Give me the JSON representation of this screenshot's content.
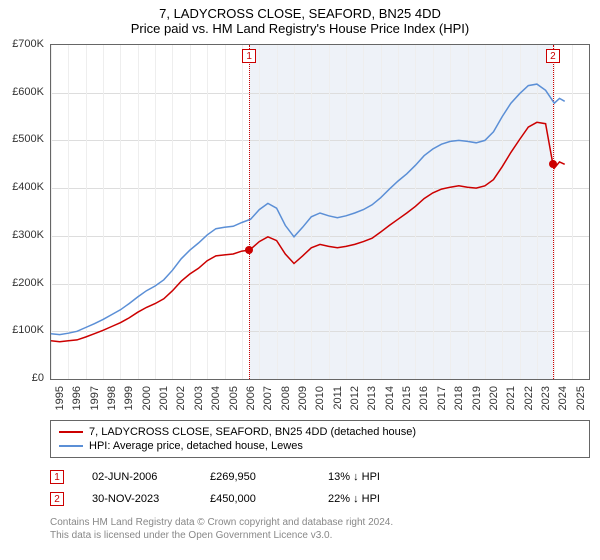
{
  "title": "7, LADYCROSS CLOSE, SEAFORD, BN25 4DD",
  "subtitle": "Price paid vs. HM Land Registry's House Price Index (HPI)",
  "chart": {
    "type": "line",
    "y_axis": {
      "min": 0,
      "max": 700000,
      "step": 100000,
      "format_prefix": "£",
      "format_suffix": "K",
      "format_divisor": 1000,
      "label_fontsize": 11,
      "grid_color": "#dddddd"
    },
    "x_axis": {
      "min": 1995,
      "max": 2026,
      "years": [
        1995,
        1996,
        1997,
        1998,
        1999,
        2000,
        2001,
        2002,
        2003,
        2004,
        2005,
        2006,
        2007,
        2008,
        2009,
        2010,
        2011,
        2012,
        2013,
        2014,
        2015,
        2016,
        2017,
        2018,
        2019,
        2020,
        2021,
        2022,
        2023,
        2024,
        2025
      ],
      "label_fontsize": 11,
      "grid_color": "#eeeeee"
    },
    "shade_region": {
      "x_start": 2006.42,
      "x_end": 2023.92,
      "color": "#eef2f8"
    },
    "markers": [
      {
        "id": "1",
        "x": 2006.42,
        "line_color": "#cc0000",
        "box_color": "#cc0000"
      },
      {
        "id": "2",
        "x": 2023.92,
        "line_color": "#cc0000",
        "box_color": "#cc0000"
      }
    ],
    "series": [
      {
        "name": "7, LADYCROSS CLOSE, SEAFORD, BN25 4DD (detached house)",
        "color": "#cc0000",
        "line_width": 1.5,
        "data": [
          [
            1995.0,
            80000
          ],
          [
            1995.5,
            78000
          ],
          [
            1996.0,
            80000
          ],
          [
            1996.5,
            82000
          ],
          [
            1997.0,
            88000
          ],
          [
            1997.5,
            95000
          ],
          [
            1998.0,
            102000
          ],
          [
            1998.5,
            110000
          ],
          [
            1999.0,
            118000
          ],
          [
            1999.5,
            128000
          ],
          [
            2000.0,
            140000
          ],
          [
            2000.5,
            150000
          ],
          [
            2001.0,
            158000
          ],
          [
            2001.5,
            168000
          ],
          [
            2002.0,
            185000
          ],
          [
            2002.5,
            205000
          ],
          [
            2003.0,
            220000
          ],
          [
            2003.5,
            232000
          ],
          [
            2004.0,
            248000
          ],
          [
            2004.5,
            258000
          ],
          [
            2005.0,
            260000
          ],
          [
            2005.5,
            262000
          ],
          [
            2006.0,
            268000
          ],
          [
            2006.42,
            269950
          ],
          [
            2006.5,
            272000
          ],
          [
            2007.0,
            288000
          ],
          [
            2007.5,
            298000
          ],
          [
            2008.0,
            290000
          ],
          [
            2008.5,
            262000
          ],
          [
            2009.0,
            242000
          ],
          [
            2009.5,
            258000
          ],
          [
            2010.0,
            275000
          ],
          [
            2010.5,
            282000
          ],
          [
            2011.0,
            278000
          ],
          [
            2011.5,
            275000
          ],
          [
            2012.0,
            278000
          ],
          [
            2012.5,
            282000
          ],
          [
            2013.0,
            288000
          ],
          [
            2013.5,
            295000
          ],
          [
            2014.0,
            308000
          ],
          [
            2014.5,
            322000
          ],
          [
            2015.0,
            335000
          ],
          [
            2015.5,
            348000
          ],
          [
            2016.0,
            362000
          ],
          [
            2016.5,
            378000
          ],
          [
            2017.0,
            390000
          ],
          [
            2017.5,
            398000
          ],
          [
            2018.0,
            402000
          ],
          [
            2018.5,
            405000
          ],
          [
            2019.0,
            402000
          ],
          [
            2019.5,
            400000
          ],
          [
            2020.0,
            405000
          ],
          [
            2020.5,
            418000
          ],
          [
            2021.0,
            445000
          ],
          [
            2021.5,
            475000
          ],
          [
            2022.0,
            502000
          ],
          [
            2022.5,
            528000
          ],
          [
            2023.0,
            538000
          ],
          [
            2023.5,
            535000
          ],
          [
            2023.92,
            450000
          ],
          [
            2024.0,
            442000
          ],
          [
            2024.3,
            455000
          ],
          [
            2024.6,
            450000
          ]
        ],
        "dots": [
          {
            "x": 2006.42,
            "y": 269950,
            "color": "#cc0000"
          },
          {
            "x": 2023.92,
            "y": 450000,
            "color": "#cc0000"
          }
        ]
      },
      {
        "name": "HPI: Average price, detached house, Lewes",
        "color": "#5b8fd6",
        "line_width": 1.5,
        "data": [
          [
            1995.0,
            95000
          ],
          [
            1995.5,
            93000
          ],
          [
            1996.0,
            96000
          ],
          [
            1996.5,
            100000
          ],
          [
            1997.0,
            108000
          ],
          [
            1997.5,
            116000
          ],
          [
            1998.0,
            125000
          ],
          [
            1998.5,
            135000
          ],
          [
            1999.0,
            145000
          ],
          [
            1999.5,
            158000
          ],
          [
            2000.0,
            172000
          ],
          [
            2000.5,
            185000
          ],
          [
            2001.0,
            195000
          ],
          [
            2001.5,
            208000
          ],
          [
            2002.0,
            228000
          ],
          [
            2002.5,
            252000
          ],
          [
            2003.0,
            270000
          ],
          [
            2003.5,
            285000
          ],
          [
            2004.0,
            302000
          ],
          [
            2004.5,
            315000
          ],
          [
            2005.0,
            318000
          ],
          [
            2005.5,
            320000
          ],
          [
            2006.0,
            328000
          ],
          [
            2006.5,
            335000
          ],
          [
            2007.0,
            355000
          ],
          [
            2007.5,
            368000
          ],
          [
            2008.0,
            358000
          ],
          [
            2008.5,
            322000
          ],
          [
            2009.0,
            298000
          ],
          [
            2009.5,
            318000
          ],
          [
            2010.0,
            340000
          ],
          [
            2010.5,
            348000
          ],
          [
            2011.0,
            342000
          ],
          [
            2011.5,
            338000
          ],
          [
            2012.0,
            342000
          ],
          [
            2012.5,
            348000
          ],
          [
            2013.0,
            355000
          ],
          [
            2013.5,
            365000
          ],
          [
            2014.0,
            380000
          ],
          [
            2014.5,
            398000
          ],
          [
            2015.0,
            415000
          ],
          [
            2015.5,
            430000
          ],
          [
            2016.0,
            448000
          ],
          [
            2016.5,
            468000
          ],
          [
            2017.0,
            482000
          ],
          [
            2017.5,
            492000
          ],
          [
            2018.0,
            498000
          ],
          [
            2018.5,
            500000
          ],
          [
            2019.0,
            498000
          ],
          [
            2019.5,
            495000
          ],
          [
            2020.0,
            500000
          ],
          [
            2020.5,
            518000
          ],
          [
            2021.0,
            550000
          ],
          [
            2021.5,
            578000
          ],
          [
            2022.0,
            598000
          ],
          [
            2022.5,
            615000
          ],
          [
            2023.0,
            618000
          ],
          [
            2023.5,
            605000
          ],
          [
            2024.0,
            578000
          ],
          [
            2024.3,
            588000
          ],
          [
            2024.6,
            582000
          ]
        ]
      }
    ],
    "background_color": "#ffffff",
    "border_color": "#666666"
  },
  "legend": {
    "border_color": "#666666",
    "font_size": 11,
    "items": [
      {
        "color": "#cc0000",
        "label": "7, LADYCROSS CLOSE, SEAFORD, BN25 4DD (detached house)"
      },
      {
        "color": "#5b8fd6",
        "label": "HPI: Average price, detached house, Lewes"
      }
    ]
  },
  "transactions": [
    {
      "marker": "1",
      "date": "02-JUN-2006",
      "price": "£269,950",
      "pct": "13%",
      "arrow": "↓",
      "vs": "HPI"
    },
    {
      "marker": "2",
      "date": "30-NOV-2023",
      "price": "£450,000",
      "pct": "22%",
      "arrow": "↓",
      "vs": "HPI"
    }
  ],
  "footer": {
    "line1": "Contains HM Land Registry data © Crown copyright and database right 2024.",
    "line2": "This data is licensed under the Open Government Licence v3.0."
  }
}
